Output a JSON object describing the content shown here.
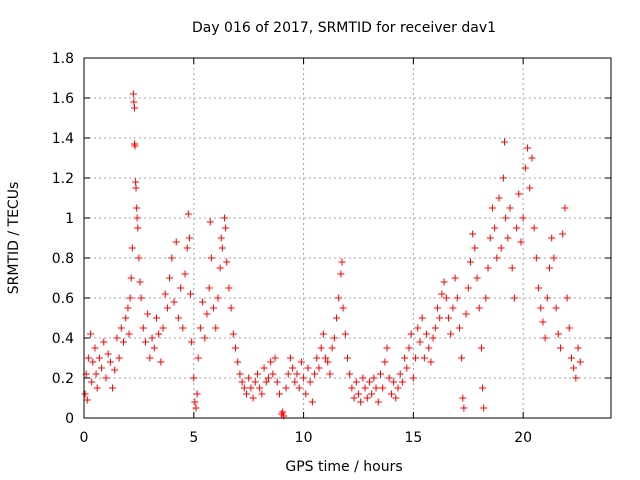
{
  "chart_data": {
    "type": "scatter",
    "title": "Day 016 of 2017, SRMTID for receiver dav1",
    "xlabel": "GPS time / hours",
    "ylabel": "SRMTID / TECUs",
    "xlim": [
      0,
      24
    ],
    "ylim": [
      0,
      1.8
    ],
    "xticks": [
      0,
      5,
      10,
      15,
      20
    ],
    "xtick_labels": [
      "0",
      "5",
      "10",
      "15",
      "20"
    ],
    "yticks": [
      0,
      0.2,
      0.4,
      0.6,
      0.8,
      1.0,
      1.2,
      1.4,
      1.6,
      1.8
    ],
    "ytick_labels": [
      "0",
      "0.2",
      "0.4",
      "0.6",
      "0.8",
      "1",
      "1.2",
      "1.4",
      "1.6",
      "1.8"
    ],
    "grid": true,
    "marker": "+",
    "color": "#ff0000",
    "series": [
      {
        "name": "SRMTID",
        "points": [
          [
            0.05,
            0.12
          ],
          [
            0.1,
            0.22
          ],
          [
            0.15,
            0.09
          ],
          [
            0.2,
            0.3
          ],
          [
            0.3,
            0.42
          ],
          [
            0.35,
            0.18
          ],
          [
            0.4,
            0.28
          ],
          [
            0.5,
            0.35
          ],
          [
            0.55,
            0.22
          ],
          [
            0.6,
            0.15
          ],
          [
            0.7,
            0.3
          ],
          [
            0.8,
            0.25
          ],
          [
            0.9,
            0.38
          ],
          [
            1.0,
            0.2
          ],
          [
            1.1,
            0.32
          ],
          [
            1.2,
            0.28
          ],
          [
            1.3,
            0.15
          ],
          [
            1.4,
            0.24
          ],
          [
            1.5,
            0.4
          ],
          [
            1.6,
            0.3
          ],
          [
            1.7,
            0.45
          ],
          [
            1.8,
            0.38
          ],
          [
            1.9,
            0.5
          ],
          [
            2.0,
            0.55
          ],
          [
            2.05,
            0.42
          ],
          [
            2.1,
            0.6
          ],
          [
            2.15,
            0.7
          ],
          [
            2.2,
            0.85
          ],
          [
            2.25,
            1.62
          ],
          [
            2.27,
            1.58
          ],
          [
            2.3,
            1.55
          ],
          [
            2.3,
            1.37
          ],
          [
            2.32,
            1.36
          ],
          [
            2.35,
            1.18
          ],
          [
            2.37,
            1.15
          ],
          [
            2.4,
            1.05
          ],
          [
            2.42,
            1.0
          ],
          [
            2.45,
            0.95
          ],
          [
            2.5,
            0.8
          ],
          [
            2.55,
            0.68
          ],
          [
            2.6,
            0.6
          ],
          [
            2.7,
            0.45
          ],
          [
            2.8,
            0.38
          ],
          [
            2.9,
            0.52
          ],
          [
            3.0,
            0.3
          ],
          [
            3.1,
            0.4
          ],
          [
            3.2,
            0.35
          ],
          [
            3.3,
            0.5
          ],
          [
            3.4,
            0.42
          ],
          [
            3.5,
            0.28
          ],
          [
            3.6,
            0.45
          ],
          [
            3.7,
            0.62
          ],
          [
            3.8,
            0.55
          ],
          [
            3.9,
            0.7
          ],
          [
            4.0,
            0.8
          ],
          [
            4.1,
            0.58
          ],
          [
            4.2,
            0.88
          ],
          [
            4.3,
            0.5
          ],
          [
            4.4,
            0.65
          ],
          [
            4.5,
            0.45
          ],
          [
            4.6,
            0.72
          ],
          [
            4.7,
            0.85
          ],
          [
            4.75,
            1.02
          ],
          [
            4.8,
            0.9
          ],
          [
            4.85,
            0.62
          ],
          [
            4.9,
            0.38
          ],
          [
            5.0,
            0.2
          ],
          [
            5.05,
            0.08
          ],
          [
            5.1,
            0.05
          ],
          [
            5.15,
            0.12
          ],
          [
            5.2,
            0.3
          ],
          [
            5.3,
            0.45
          ],
          [
            5.4,
            0.58
          ],
          [
            5.5,
            0.4
          ],
          [
            5.6,
            0.52
          ],
          [
            5.7,
            0.65
          ],
          [
            5.75,
            0.98
          ],
          [
            5.8,
            0.8
          ],
          [
            5.9,
            0.55
          ],
          [
            6.0,
            0.45
          ],
          [
            6.1,
            0.6
          ],
          [
            6.2,
            0.75
          ],
          [
            6.25,
            0.9
          ],
          [
            6.3,
            0.85
          ],
          [
            6.4,
            1.0
          ],
          [
            6.45,
            0.95
          ],
          [
            6.5,
            0.78
          ],
          [
            6.6,
            0.65
          ],
          [
            6.7,
            0.55
          ],
          [
            6.8,
            0.42
          ],
          [
            6.9,
            0.35
          ],
          [
            7.0,
            0.28
          ],
          [
            7.1,
            0.22
          ],
          [
            7.2,
            0.18
          ],
          [
            7.3,
            0.15
          ],
          [
            7.4,
            0.12
          ],
          [
            7.5,
            0.2
          ],
          [
            7.6,
            0.15
          ],
          [
            7.7,
            0.1
          ],
          [
            7.8,
            0.18
          ],
          [
            7.9,
            0.22
          ],
          [
            8.0,
            0.15
          ],
          [
            8.1,
            0.12
          ],
          [
            8.2,
            0.25
          ],
          [
            8.3,
            0.18
          ],
          [
            8.4,
            0.2
          ],
          [
            8.5,
            0.28
          ],
          [
            8.6,
            0.22
          ],
          [
            8.7,
            0.3
          ],
          [
            8.8,
            0.18
          ],
          [
            8.9,
            0.12
          ],
          [
            9.0,
            0.02
          ],
          [
            9.05,
            0.03
          ],
          [
            9.1,
            0.01
          ],
          [
            9.2,
            0.15
          ],
          [
            9.3,
            0.22
          ],
          [
            9.4,
            0.3
          ],
          [
            9.5,
            0.25
          ],
          [
            9.6,
            0.18
          ],
          [
            9.7,
            0.22
          ],
          [
            9.8,
            0.15
          ],
          [
            9.9,
            0.28
          ],
          [
            10.0,
            0.2
          ],
          [
            10.1,
            0.12
          ],
          [
            10.2,
            0.25
          ],
          [
            10.3,
            0.18
          ],
          [
            10.4,
            0.08
          ],
          [
            10.5,
            0.22
          ],
          [
            10.6,
            0.3
          ],
          [
            10.7,
            0.25
          ],
          [
            10.8,
            0.35
          ],
          [
            10.9,
            0.42
          ],
          [
            11.0,
            0.3
          ],
          [
            11.1,
            0.28
          ],
          [
            11.2,
            0.22
          ],
          [
            11.3,
            0.35
          ],
          [
            11.4,
            0.4
          ],
          [
            11.5,
            0.5
          ],
          [
            11.6,
            0.6
          ],
          [
            11.7,
            0.72
          ],
          [
            11.75,
            0.78
          ],
          [
            11.8,
            0.55
          ],
          [
            11.9,
            0.42
          ],
          [
            12.0,
            0.3
          ],
          [
            12.1,
            0.22
          ],
          [
            12.2,
            0.15
          ],
          [
            12.3,
            0.1
          ],
          [
            12.4,
            0.18
          ],
          [
            12.5,
            0.12
          ],
          [
            12.6,
            0.08
          ],
          [
            12.7,
            0.2
          ],
          [
            12.8,
            0.15
          ],
          [
            12.9,
            0.1
          ],
          [
            13.0,
            0.18
          ],
          [
            13.1,
            0.12
          ],
          [
            13.2,
            0.2
          ],
          [
            13.3,
            0.15
          ],
          [
            13.4,
            0.08
          ],
          [
            13.5,
            0.22
          ],
          [
            13.6,
            0.15
          ],
          [
            13.7,
            0.28
          ],
          [
            13.8,
            0.35
          ],
          [
            13.9,
            0.2
          ],
          [
            14.0,
            0.12
          ],
          [
            14.1,
            0.18
          ],
          [
            14.2,
            0.1
          ],
          [
            14.3,
            0.15
          ],
          [
            14.4,
            0.22
          ],
          [
            14.5,
            0.18
          ],
          [
            14.6,
            0.3
          ],
          [
            14.7,
            0.25
          ],
          [
            14.8,
            0.35
          ],
          [
            14.9,
            0.42
          ],
          [
            15.0,
            0.2
          ],
          [
            15.1,
            0.3
          ],
          [
            15.2,
            0.45
          ],
          [
            15.3,
            0.38
          ],
          [
            15.4,
            0.5
          ],
          [
            15.5,
            0.3
          ],
          [
            15.6,
            0.42
          ],
          [
            15.7,
            0.35
          ],
          [
            15.8,
            0.28
          ],
          [
            15.9,
            0.4
          ],
          [
            16.0,
            0.45
          ],
          [
            16.1,
            0.55
          ],
          [
            16.2,
            0.5
          ],
          [
            16.3,
            0.62
          ],
          [
            16.4,
            0.68
          ],
          [
            16.5,
            0.6
          ],
          [
            16.6,
            0.5
          ],
          [
            16.7,
            0.42
          ],
          [
            16.8,
            0.55
          ],
          [
            16.9,
            0.7
          ],
          [
            17.0,
            0.6
          ],
          [
            17.1,
            0.45
          ],
          [
            17.2,
            0.3
          ],
          [
            17.25,
            0.1
          ],
          [
            17.3,
            0.05
          ],
          [
            17.4,
            0.52
          ],
          [
            17.5,
            0.65
          ],
          [
            17.6,
            0.78
          ],
          [
            17.7,
            0.92
          ],
          [
            17.8,
            0.85
          ],
          [
            17.9,
            0.7
          ],
          [
            18.0,
            0.55
          ],
          [
            18.1,
            0.35
          ],
          [
            18.15,
            0.15
          ],
          [
            18.2,
            0.05
          ],
          [
            18.3,
            0.6
          ],
          [
            18.4,
            0.75
          ],
          [
            18.5,
            0.9
          ],
          [
            18.6,
            1.05
          ],
          [
            18.7,
            0.95
          ],
          [
            18.8,
            0.8
          ],
          [
            18.9,
            1.1
          ],
          [
            19.0,
            0.85
          ],
          [
            19.1,
            1.2
          ],
          [
            19.15,
            1.38
          ],
          [
            19.2,
            1.0
          ],
          [
            19.3,
            0.9
          ],
          [
            19.4,
            1.05
          ],
          [
            19.5,
            0.75
          ],
          [
            19.6,
            0.6
          ],
          [
            19.7,
            0.95
          ],
          [
            19.8,
            1.12
          ],
          [
            19.9,
            0.88
          ],
          [
            20.0,
            1.0
          ],
          [
            20.1,
            1.25
          ],
          [
            20.2,
            1.35
          ],
          [
            20.3,
            1.15
          ],
          [
            20.4,
            1.3
          ],
          [
            20.5,
            0.95
          ],
          [
            20.6,
            0.8
          ],
          [
            20.7,
            0.65
          ],
          [
            20.8,
            0.55
          ],
          [
            20.9,
            0.48
          ],
          [
            21.0,
            0.4
          ],
          [
            21.1,
            0.6
          ],
          [
            21.2,
            0.75
          ],
          [
            21.3,
            0.9
          ],
          [
            21.4,
            0.8
          ],
          [
            21.5,
            0.55
          ],
          [
            21.6,
            0.42
          ],
          [
            21.7,
            0.35
          ],
          [
            21.8,
            0.92
          ],
          [
            21.9,
            1.05
          ],
          [
            22.0,
            0.6
          ],
          [
            22.1,
            0.45
          ],
          [
            22.2,
            0.3
          ],
          [
            22.3,
            0.25
          ],
          [
            22.4,
            0.2
          ],
          [
            22.5,
            0.35
          ],
          [
            22.6,
            0.28
          ]
        ]
      }
    ]
  }
}
